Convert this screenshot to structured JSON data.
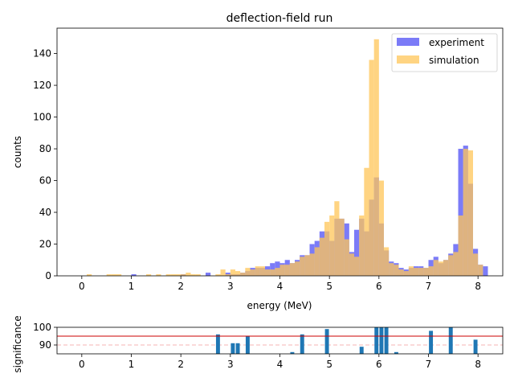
{
  "chart_data": [
    {
      "type": "bar",
      "title": "deflection-field run",
      "xlabel": "energy (MeV)",
      "ylabel": "counts",
      "xlim": [
        -0.5,
        8.5
      ],
      "ylim": [
        0,
        156
      ],
      "x_ticks": [
        "0",
        "1",
        "2",
        "3",
        "4",
        "5",
        "6",
        "7",
        "8"
      ],
      "y_ticks": [
        "0",
        "20",
        "40",
        "60",
        "80",
        "100",
        "120",
        "140"
      ],
      "legend_position": "top-right",
      "bin_start": 0.0,
      "bin_width": 0.1,
      "series": [
        {
          "name": "experiment",
          "color": "#7b7bf7",
          "values": [
            0,
            0,
            0,
            0,
            0,
            0,
            0,
            0,
            0,
            0,
            1,
            0,
            0,
            0,
            0,
            0,
            0,
            0,
            0,
            0,
            1,
            0,
            0,
            0,
            0,
            2,
            0,
            0,
            0,
            2,
            1,
            1,
            2,
            3,
            5,
            5,
            5,
            6,
            8,
            9,
            8,
            10,
            8,
            10,
            13,
            13,
            20,
            22,
            28,
            28,
            22,
            36,
            36,
            33,
            15,
            29,
            36,
            28,
            48,
            62,
            33,
            16,
            9,
            8,
            5,
            4,
            5,
            6,
            6,
            5,
            10,
            12,
            8,
            10,
            14,
            20,
            80,
            82,
            58,
            17,
            7,
            6,
            0,
            0,
            0,
            0,
            0,
            0,
            0,
            0
          ]
        },
        {
          "name": "simulation",
          "color": "#ffc658",
          "values": [
            0,
            1,
            0,
            0,
            0,
            1,
            1,
            1,
            0,
            0,
            0,
            0,
            0,
            1,
            0,
            1,
            0,
            1,
            1,
            1,
            1,
            2,
            1,
            1,
            0,
            0,
            0,
            1,
            4,
            1,
            4,
            3,
            2,
            5,
            4,
            6,
            6,
            4,
            4,
            5,
            7,
            7,
            8,
            9,
            12,
            13,
            14,
            18,
            24,
            34,
            38,
            47,
            36,
            23,
            14,
            12,
            38,
            68,
            136,
            149,
            60,
            18,
            8,
            7,
            4,
            3,
            6,
            5,
            5,
            5,
            6,
            10,
            9,
            10,
            13,
            15,
            38,
            80,
            79,
            14,
            7,
            0,
            0,
            0,
            0,
            0,
            0,
            0,
            0,
            0
          ]
        }
      ]
    },
    {
      "type": "bar",
      "title": "",
      "xlabel": "",
      "ylabel": "significance",
      "xlim": [
        -0.5,
        8.5
      ],
      "ylim": [
        85,
        100
      ],
      "x_ticks": [
        "0",
        "1",
        "2",
        "3",
        "4",
        "5",
        "6",
        "7",
        "8"
      ],
      "y_ticks": [
        "90",
        "100"
      ],
      "threshold": 95,
      "reference_line": 90,
      "threshold_color": "#cc0000",
      "bar_color": "#1f77b4",
      "bin_start": 0.0,
      "bin_width": 0.1,
      "values": {
        "2.7": 96,
        "3.0": 91,
        "3.1": 91,
        "3.3": 95,
        "4.2": 86,
        "4.4": 96,
        "4.9": 99,
        "5.6": 89,
        "5.9": 100,
        "6.0": 100,
        "6.1": 100,
        "6.3": 86,
        "7.0": 98,
        "7.4": 100,
        "7.9": 93
      }
    }
  ]
}
